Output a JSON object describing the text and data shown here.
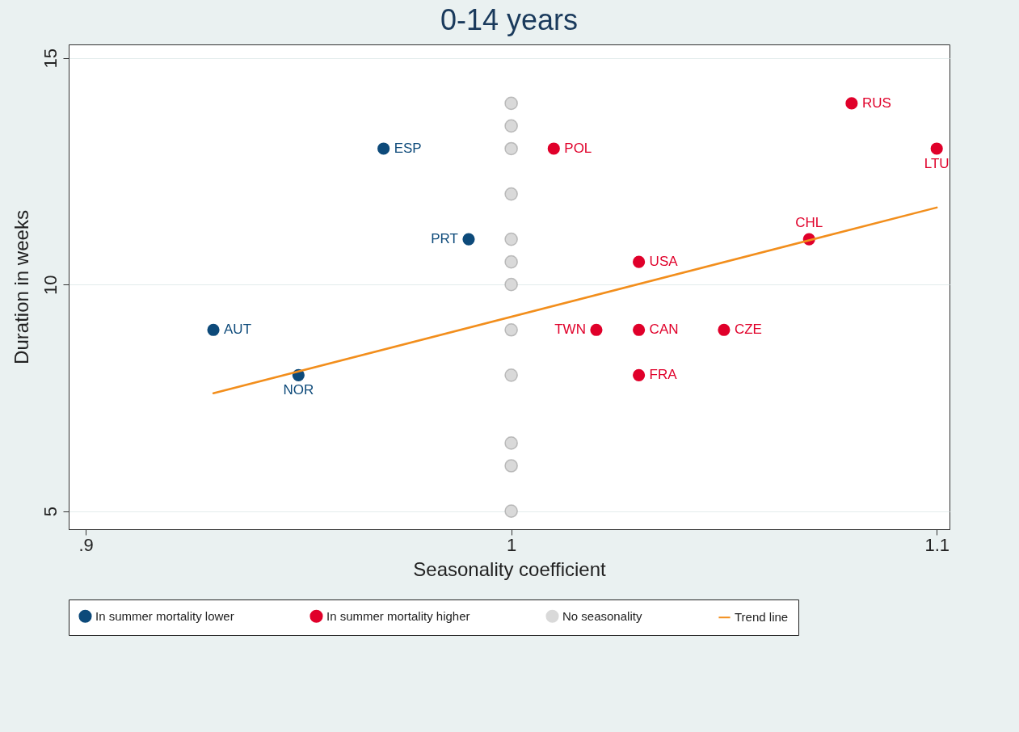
{
  "chart_data": {
    "type": "scatter",
    "title": "0-14 years",
    "xlabel": "Seasonality coefficient",
    "ylabel": "Duration in weeks",
    "xlim": [
      0.896,
      1.103
    ],
    "ylim": [
      4.6,
      15.3
    ],
    "xticks": [
      {
        "value": 0.9,
        "label": ".9"
      },
      1,
      1.1
    ],
    "yticks": [
      5,
      10,
      15
    ],
    "grid": "y",
    "legend": "bottom",
    "series": [
      {
        "name": "In summer mortality lower",
        "marker": "circle",
        "color": "#0d4a7a",
        "x": [
          0.93,
          0.95,
          0.97,
          0.99
        ],
        "values": [
          9,
          8,
          13,
          11
        ]
      },
      {
        "name": "In summer mortality higher",
        "marker": "circle",
        "color": "#e0002a",
        "x": [
          1.01,
          1.02,
          1.03,
          1.03,
          1.03,
          1.05,
          1.07,
          1.08,
          1.1
        ],
        "values": [
          13,
          9,
          9,
          10.5,
          8,
          9,
          11,
          14,
          13
        ]
      },
      {
        "name": "No seasonality",
        "marker": "circle",
        "color": "#d9d9d9",
        "x": [
          1,
          1,
          1,
          1,
          1,
          1,
          1,
          1,
          1,
          1,
          1,
          1
        ],
        "values": [
          14,
          13.5,
          13,
          12,
          11,
          10.5,
          10,
          9,
          8,
          6.5,
          6,
          5
        ]
      },
      {
        "name": "Trend line",
        "type": "line",
        "marker": "none",
        "color": "#f28e1c",
        "x": [
          0.93,
          1.1
        ],
        "values": [
          7.6,
          11.7
        ]
      }
    ],
    "annotations": [
      {
        "text": "AUT",
        "x": 0.93,
        "y": 9
      },
      {
        "text": "NOR",
        "x": 0.95,
        "y": 8
      },
      {
        "text": "ESP",
        "x": 0.97,
        "y": 13
      },
      {
        "text": "PRT",
        "x": 0.99,
        "y": 11
      },
      {
        "text": "POL",
        "x": 1.01,
        "y": 13
      },
      {
        "text": "TWN",
        "x": 1.02,
        "y": 9
      },
      {
        "text": "CAN",
        "x": 1.03,
        "y": 9
      },
      {
        "text": "USA",
        "x": 1.03,
        "y": 10.5
      },
      {
        "text": "FRA",
        "x": 1.03,
        "y": 8
      },
      {
        "text": "CZE",
        "x": 1.05,
        "y": 9
      },
      {
        "text": "CHL",
        "x": 1.07,
        "y": 11
      },
      {
        "text": "RUS",
        "x": 1.08,
        "y": 14
      },
      {
        "text": "LTU",
        "x": 1.1,
        "y": 13
      }
    ]
  }
}
